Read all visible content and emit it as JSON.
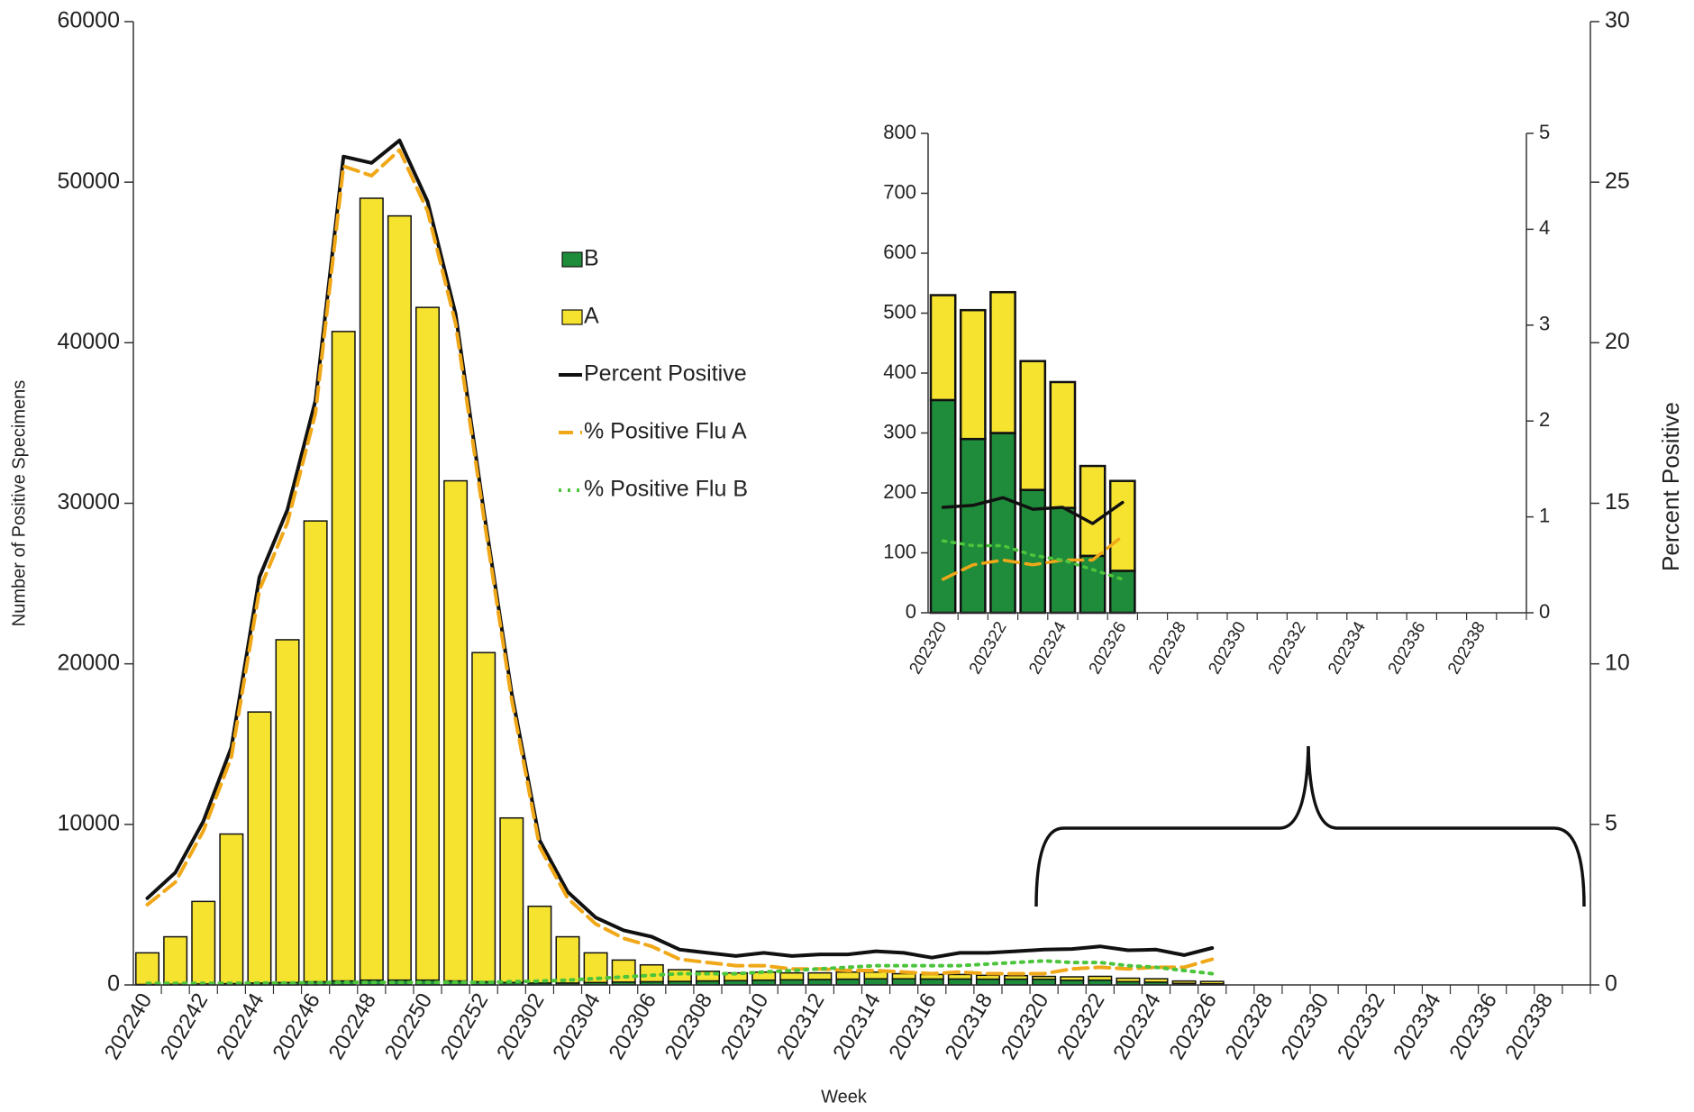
{
  "chart_data": [
    {
      "type": "bar",
      "xlabel": "Week",
      "ylabel": "Number of Positive Specimens",
      "y2label": "Percent Positive",
      "categories": [
        "202240",
        null,
        "202242",
        null,
        "202244",
        null,
        "202246",
        null,
        "202248",
        null,
        "202250",
        null,
        "202252",
        null,
        "202302",
        null,
        "202304",
        null,
        "202306",
        null,
        "202308",
        null,
        "202310",
        null,
        "202312",
        null,
        "202314",
        null,
        "202316",
        null,
        "202318",
        null,
        "202320",
        null,
        "202322",
        null,
        "202324",
        null,
        "202326",
        null,
        "202328",
        null,
        "202330",
        null,
        "202332",
        null,
        "202334",
        null,
        "202336",
        null,
        "202338",
        null
      ],
      "ylim": [
        0,
        60000
      ],
      "yticks": [
        0,
        10000,
        20000,
        30000,
        40000,
        50000,
        60000
      ],
      "y2lim": [
        0,
        30
      ],
      "y2ticks": [
        0,
        5,
        10,
        15,
        20,
        25,
        30
      ],
      "legend": "center",
      "series": [
        {
          "name": "B",
          "type": "bar",
          "color": "#1e8c3a",
          "values": [
            30,
            40,
            60,
            80,
            120,
            150,
            200,
            250,
            300,
            300,
            300,
            250,
            200,
            150,
            120,
            120,
            150,
            180,
            200,
            220,
            250,
            270,
            300,
            320,
            340,
            360,
            380,
            380,
            370,
            370,
            360,
            360,
            355,
            290,
            300,
            205,
            175,
            95,
            70,
            null,
            null,
            null,
            null,
            null,
            null,
            null,
            null,
            null,
            null,
            null,
            null,
            null
          ]
        },
        {
          "name": "A",
          "type": "bar",
          "color": "#f5e330",
          "values": [
            1970,
            2960,
            5140,
            9320,
            16880,
            21350,
            28700,
            40450,
            48700,
            47600,
            41900,
            31150,
            20500,
            10250,
            4780,
            2880,
            1850,
            1370,
            1050,
            730,
            600,
            480,
            500,
            430,
            410,
            440,
            420,
            320,
            280,
            280,
            240,
            220,
            175,
            215,
            235,
            215,
            210,
            150,
            150,
            null,
            null,
            null,
            null,
            null,
            null,
            null,
            null,
            null,
            null,
            null,
            null,
            null
          ]
        },
        {
          "name": "Percent Positive",
          "type": "line",
          "axis": "y2",
          "color": "#111111",
          "line_style": "solid",
          "values": [
            2.7,
            3.5,
            5.1,
            7.4,
            12.7,
            14.8,
            18.2,
            25.8,
            25.6,
            26.3,
            24.4,
            20.9,
            14.8,
            9.1,
            4.5,
            2.9,
            2.1,
            1.7,
            1.5,
            1.1,
            1.0,
            0.9,
            1.0,
            0.9,
            0.95,
            0.95,
            1.05,
            1.0,
            0.85,
            1.0,
            1.0,
            1.05,
            1.1,
            1.12,
            1.2,
            1.08,
            1.1,
            0.93,
            1.15,
            null,
            null,
            null,
            null,
            null,
            null,
            null,
            null,
            null,
            null,
            null,
            null,
            null
          ]
        },
        {
          "name": "% Positive Flu A",
          "type": "line",
          "axis": "y2",
          "color": "#f0a818",
          "line_style": "dashed",
          "values": [
            2.5,
            3.2,
            4.8,
            7.1,
            12.3,
            14.4,
            17.8,
            25.5,
            25.2,
            26.0,
            24.1,
            20.6,
            14.6,
            8.9,
            4.3,
            2.7,
            1.9,
            1.45,
            1.2,
            0.8,
            0.7,
            0.6,
            0.6,
            0.5,
            0.5,
            0.45,
            0.45,
            0.4,
            0.35,
            0.4,
            0.35,
            0.35,
            0.35,
            0.5,
            0.55,
            0.5,
            0.55,
            0.55,
            0.8,
            null,
            null,
            null,
            null,
            null,
            null,
            null,
            null,
            null,
            null,
            null,
            null,
            null
          ]
        },
        {
          "name": "% Positive Flu B",
          "type": "line",
          "axis": "y2",
          "color": "#4cc43c",
          "line_style": "dotted",
          "values": [
            0.05,
            0.05,
            0.05,
            0.05,
            0.06,
            0.06,
            0.07,
            0.08,
            0.08,
            0.08,
            0.08,
            0.08,
            0.08,
            0.1,
            0.12,
            0.15,
            0.2,
            0.25,
            0.3,
            0.35,
            0.35,
            0.35,
            0.4,
            0.45,
            0.5,
            0.55,
            0.6,
            0.6,
            0.6,
            0.6,
            0.65,
            0.7,
            0.75,
            0.7,
            0.7,
            0.6,
            0.55,
            0.45,
            0.35,
            null,
            null,
            null,
            null,
            null,
            null,
            null,
            null,
            null,
            null,
            null,
            null,
            null
          ]
        }
      ]
    },
    {
      "type": "bar",
      "categories": [
        "202320",
        null,
        "202322",
        null,
        "202324",
        null,
        "202326",
        null,
        "202328",
        null,
        "202330",
        null,
        "202332",
        null,
        "202334",
        null,
        "202336",
        null,
        "202338",
        null
      ],
      "ylim": [
        0,
        800
      ],
      "yticks": [
        0,
        100,
        200,
        300,
        400,
        500,
        600,
        700,
        800
      ],
      "y2lim": [
        0,
        5
      ],
      "y2ticks": [
        0,
        1,
        2,
        3,
        4,
        5
      ],
      "series": [
        {
          "type": "bar",
          "color": "#1e8c3a",
          "values": [
            355,
            290,
            300,
            205,
            175,
            95,
            70,
            null,
            null,
            null,
            null,
            null,
            null,
            null,
            null,
            null,
            null,
            null,
            null,
            null
          ]
        },
        {
          "type": "bar",
          "color": "#f5e330",
          "values": [
            175,
            215,
            235,
            215,
            210,
            150,
            150,
            null,
            null,
            null,
            null,
            null,
            null,
            null,
            null,
            null,
            null,
            null,
            null,
            null
          ]
        },
        {
          "type": "line",
          "axis": "y2",
          "color": "#111111",
          "line_style": "solid",
          "values": [
            1.1,
            1.12,
            1.2,
            1.08,
            1.1,
            0.93,
            1.15,
            null,
            null,
            null,
            null,
            null,
            null,
            null,
            null,
            null,
            null,
            null,
            null,
            null
          ]
        },
        {
          "type": "line",
          "axis": "y2",
          "color": "#f0a818",
          "line_style": "dashed",
          "values": [
            0.35,
            0.5,
            0.55,
            0.5,
            0.55,
            0.55,
            0.8,
            null,
            null,
            null,
            null,
            null,
            null,
            null,
            null,
            null,
            null,
            null,
            null,
            null
          ]
        },
        {
          "type": "line",
          "axis": "y2",
          "color": "#4cc43c",
          "line_style": "dotted",
          "values": [
            0.75,
            0.7,
            0.7,
            0.6,
            0.55,
            0.45,
            0.35,
            null,
            null,
            null,
            null,
            null,
            null,
            null,
            null,
            null,
            null,
            null,
            null,
            null
          ]
        }
      ]
    }
  ]
}
